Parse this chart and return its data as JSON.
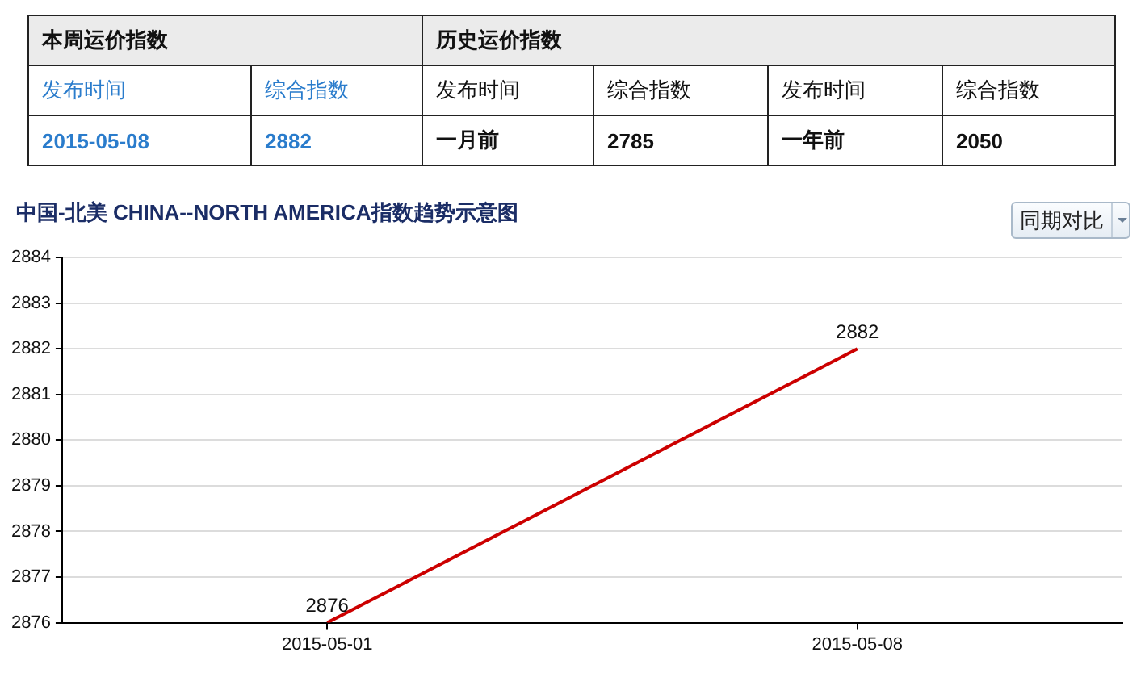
{
  "chart_data": [
    {
      "type": "other",
      "annotations": [
        "本周运价指数",
        "历史运价指数",
        "发布时间",
        "综合指数",
        "发布时间",
        "综合指数",
        "发布时间",
        "综合指数",
        "2015-05-08",
        "2882",
        "一月前",
        "2785",
        "一年前",
        "2050"
      ]
    },
    {
      "type": "line",
      "title": "中国-北美 CHINA--NORTH AMERICA指数趋势示意图",
      "categories": [
        "2015-05-01",
        "2015-05-08"
      ],
      "series": [
        {
          "color": "#cc0000",
          "values": [
            2876,
            2882
          ]
        }
      ],
      "ylim": [
        2876,
        2884
      ],
      "yticks": [
        2876,
        2877,
        2878,
        2879,
        2880,
        2881,
        2882,
        2883,
        2884
      ],
      "grid": "y",
      "legend": false,
      "marker": "none",
      "data_labels": true,
      "annotations": [
        "同期对比"
      ]
    }
  ]
}
